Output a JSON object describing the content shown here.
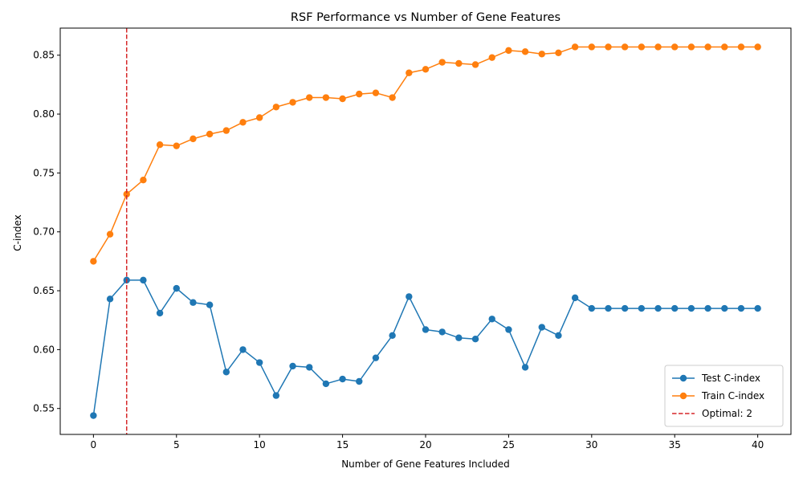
{
  "chart_data": {
    "type": "line",
    "title": "RSF Performance vs Number of Gene Features",
    "xlabel": "Number of Gene Features Included",
    "ylabel": "C-index",
    "xlim": [
      -2,
      42
    ],
    "ylim": [
      0.528,
      0.873
    ],
    "xticks": [
      0,
      5,
      10,
      15,
      20,
      25,
      30,
      35,
      40
    ],
    "xtick_labels": [
      "0",
      "5",
      "10",
      "15",
      "20",
      "25",
      "30",
      "35",
      "40"
    ],
    "yticks": [
      0.55,
      0.6,
      0.65,
      0.7,
      0.75,
      0.8,
      0.85
    ],
    "ytick_labels": [
      "0.55",
      "0.60",
      "0.65",
      "0.70",
      "0.75",
      "0.80",
      "0.85"
    ],
    "grid": false,
    "legend_position": "lower-right",
    "x": [
      0,
      1,
      2,
      3,
      4,
      5,
      6,
      7,
      8,
      9,
      10,
      11,
      12,
      13,
      14,
      15,
      16,
      17,
      18,
      19,
      20,
      21,
      22,
      23,
      24,
      25,
      26,
      27,
      28,
      29,
      30,
      31,
      32,
      33,
      34,
      35,
      36,
      37,
      38,
      39,
      40
    ],
    "series": [
      {
        "name": "Test C-index",
        "color": "#1f77b4",
        "marker": "circle",
        "values": [
          0.544,
          0.643,
          0.659,
          0.659,
          0.631,
          0.652,
          0.64,
          0.638,
          0.581,
          0.6,
          0.589,
          0.561,
          0.586,
          0.585,
          0.571,
          0.575,
          0.573,
          0.593,
          0.612,
          0.645,
          0.617,
          0.615,
          0.61,
          0.609,
          0.626,
          0.617,
          0.585,
          0.619,
          0.612,
          0.644,
          0.635,
          0.635,
          0.635,
          0.635,
          0.635,
          0.635,
          0.635,
          0.635,
          0.635,
          0.635,
          0.635
        ]
      },
      {
        "name": "Train C-index",
        "color": "#ff7f0e",
        "marker": "circle",
        "values": [
          0.675,
          0.698,
          0.732,
          0.744,
          0.774,
          0.773,
          0.779,
          0.783,
          0.786,
          0.793,
          0.797,
          0.806,
          0.81,
          0.814,
          0.814,
          0.813,
          0.817,
          0.818,
          0.814,
          0.835,
          0.838,
          0.844,
          0.843,
          0.842,
          0.848,
          0.854,
          0.853,
          0.851,
          0.852,
          0.857,
          0.857,
          0.857,
          0.857,
          0.857,
          0.857,
          0.857,
          0.857,
          0.857,
          0.857,
          0.857,
          0.857
        ]
      }
    ],
    "vline": {
      "name": "Optimal: 2",
      "x": 2,
      "color": "#d62728",
      "style": "dashed"
    }
  }
}
